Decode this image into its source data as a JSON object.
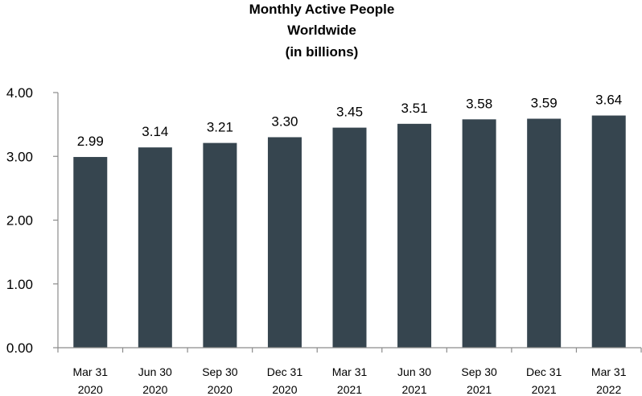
{
  "chart_data": {
    "type": "bar",
    "title": [
      "Monthly Active People",
      "Worldwide",
      "(in billions)"
    ],
    "categories": [
      [
        "Mar 31",
        "2020"
      ],
      [
        "Jun 30",
        "2020"
      ],
      [
        "Sep 30",
        "2020"
      ],
      [
        "Dec 31",
        "2020"
      ],
      [
        "Mar 31",
        "2021"
      ],
      [
        "Jun 30",
        "2021"
      ],
      [
        "Sep 30",
        "2021"
      ],
      [
        "Dec 31",
        "2021"
      ],
      [
        "Mar 31",
        "2022"
      ]
    ],
    "values": [
      2.99,
      3.14,
      3.21,
      3.3,
      3.45,
      3.51,
      3.58,
      3.59,
      3.64
    ],
    "data_labels": [
      "2.99",
      "3.14",
      "3.21",
      "3.30",
      "3.45",
      "3.51",
      "3.58",
      "3.59",
      "3.64"
    ],
    "yticks": [
      0,
      1,
      2,
      3,
      4
    ],
    "ytick_labels": [
      "0.00",
      "1.00",
      "2.00",
      "3.00",
      "4.00"
    ],
    "ylim": [
      0,
      4
    ],
    "xlabel": "",
    "ylabel": "",
    "grid": false,
    "legend": "none",
    "bar_color": "#36454f"
  }
}
